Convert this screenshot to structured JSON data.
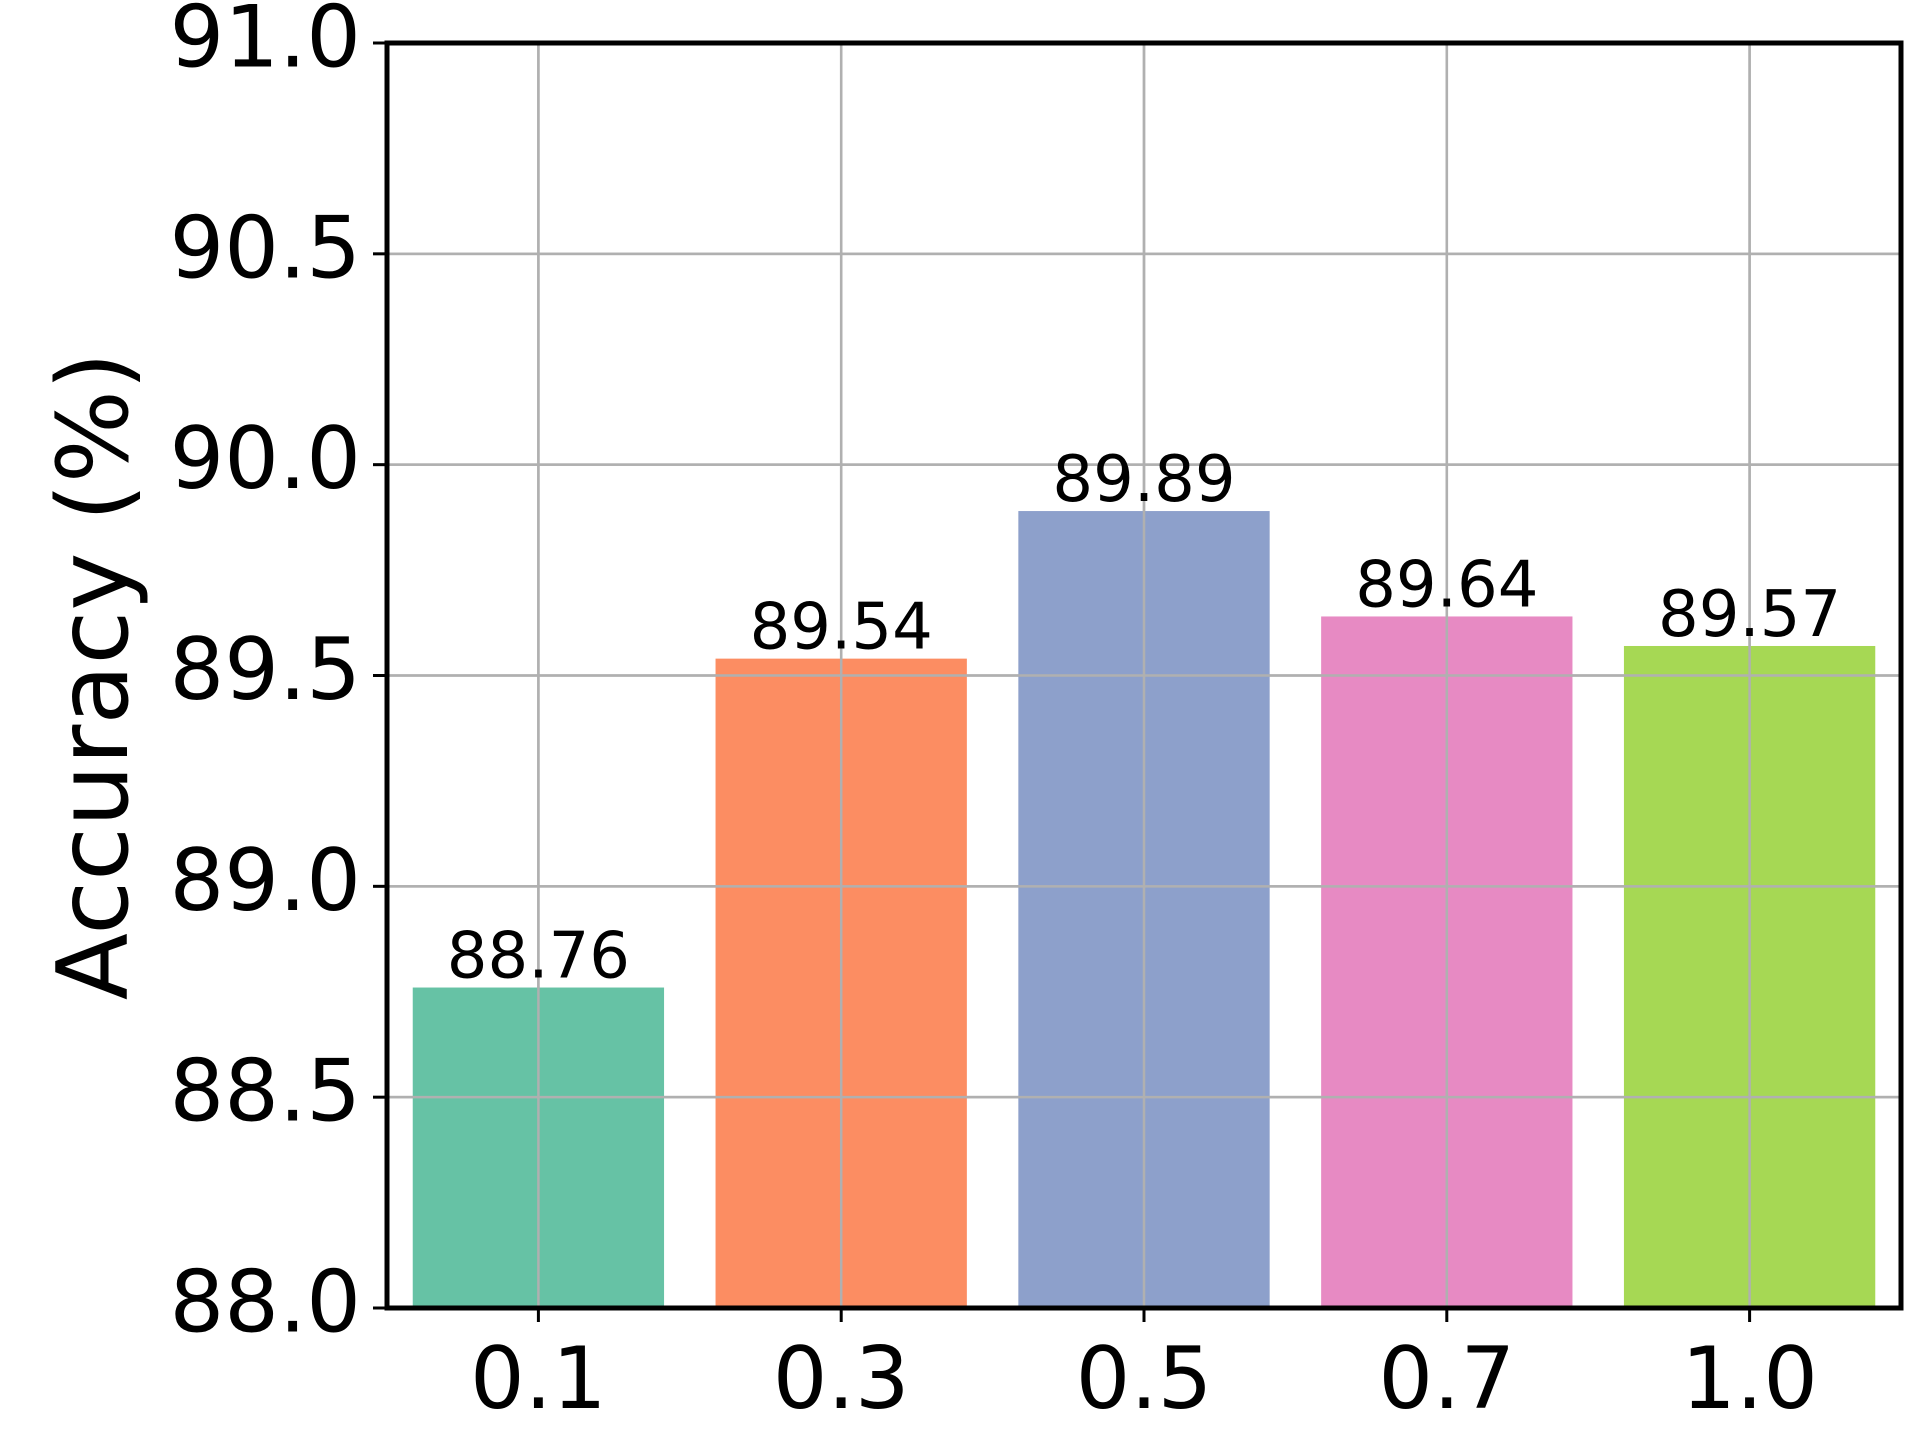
{
  "chart_data": {
    "type": "bar",
    "y_label": "Accuracy (%)",
    "categories": [
      "0.1",
      "0.3",
      "0.5",
      "0.7",
      "1.0"
    ],
    "values": [
      88.76,
      89.54,
      89.89,
      89.64,
      89.57
    ],
    "colors": [
      "#66c2a5",
      "#fc8d62",
      "#8da0cb",
      "#e78ac3",
      "#a6d854"
    ],
    "ylim": [
      88.0,
      91.0
    ],
    "yticks": [
      {
        "value": 88.0,
        "label": "88.0"
      },
      88.5,
      {
        "value": 89.0,
        "label": "89.0"
      },
      89.5,
      {
        "value": 90.0,
        "label": "90.0"
      },
      90.5,
      {
        "value": 91.0,
        "label": "91.0"
      }
    ],
    "grid": true
  }
}
